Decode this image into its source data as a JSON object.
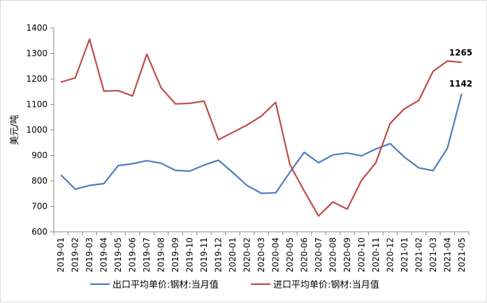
{
  "chart_data": {
    "type": "line",
    "title": "",
    "xlabel": "",
    "ylabel": "美元/吨",
    "ylim": [
      600,
      1400
    ],
    "yticks": [
      600,
      700,
      800,
      900,
      1000,
      1100,
      1200,
      1300,
      1400
    ],
    "grid": false,
    "legend_position": "bottom",
    "categories": [
      "2019-01",
      "2019-02",
      "2019-03",
      "2019-04",
      "2019-05",
      "2019-06",
      "2019-07",
      "2019-08",
      "2019-09",
      "2019-10",
      "2019-11",
      "2019-12",
      "2020-01",
      "2020-02",
      "2020-03",
      "2020-04",
      "2020-05",
      "2020-06",
      "2020-07",
      "2020-08",
      "2020-09",
      "2020-10",
      "2020-11",
      "2020-12",
      "2021-01",
      "2021-02",
      "2021-03",
      "2021-04",
      "2021-05"
    ],
    "series": [
      {
        "name": "出口平均单价:钢材:当月值",
        "color": "#4a7dbf",
        "values": [
          823,
          767,
          782,
          789,
          860,
          867,
          879,
          869,
          841,
          838,
          862,
          881,
          833,
          782,
          751,
          753,
          834,
          912,
          871,
          902,
          909,
          898,
          925,
          946,
          893,
          851,
          840,
          928,
          1142
        ],
        "end_label": "1142"
      },
      {
        "name": "进口平均单价:钢材:当月值",
        "color": "#be4b48",
        "values": [
          1187,
          1204,
          1356,
          1152,
          1154,
          1133,
          1297,
          1165,
          1102,
          1104,
          1113,
          961,
          990,
          1019,
          1054,
          1108,
          863,
          760,
          662,
          717,
          689,
          802,
          871,
          1025,
          1083,
          1115,
          1230,
          1270,
          1265
        ],
        "end_label": "1265"
      }
    ]
  }
}
